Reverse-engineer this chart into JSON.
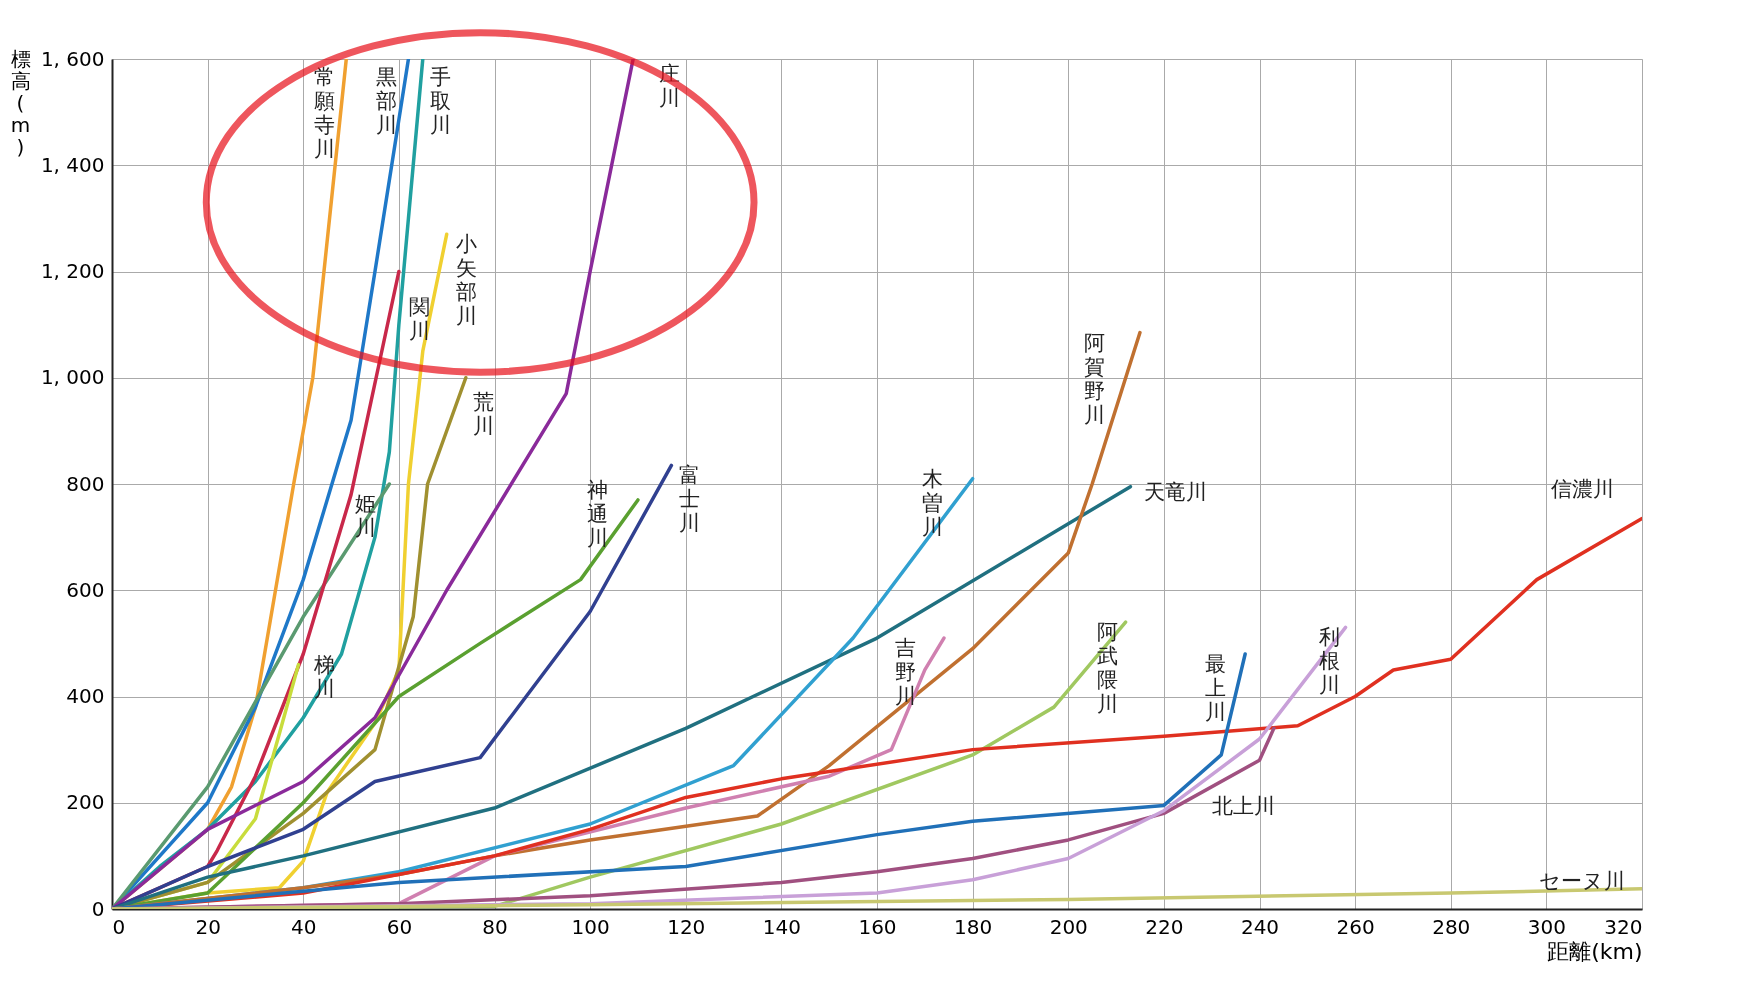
{
  "chart_data": {
    "type": "line",
    "xlabel": "距離(km)",
    "ylabel": "標高(m)",
    "xlim": [
      0,
      320
    ],
    "xticks": [
      0,
      20,
      40,
      60,
      80,
      100,
      120,
      140,
      160,
      180,
      200,
      220,
      240,
      260,
      280,
      300,
      320
    ],
    "ylim": [
      0,
      1600
    ],
    "yticks": [
      0,
      200,
      400,
      600,
      800,
      {
        "value": 1000,
        "label": "1, 000"
      },
      {
        "value": 1200,
        "label": "1, 200"
      },
      {
        "value": 1400,
        "label": "1, 400"
      },
      {
        "value": 1600,
        "label": "1, 600"
      }
    ],
    "grid": true,
    "legend": false,
    "marker": "none",
    "line_style": "solid",
    "series": [
      {
        "name": "常願寺川",
        "color": "#f0a030",
        "x": [
          0,
          20,
          25,
          30,
          38,
          42,
          49
        ],
        "values": [
          0,
          150,
          230,
          380,
          800,
          1000,
          1600
        ]
      },
      {
        "name": "黒部川",
        "color": "#1e78c8",
        "x": [
          0,
          20,
          30,
          40,
          50,
          55,
          62
        ],
        "values": [
          0,
          200,
          380,
          620,
          920,
          1200,
          1600
        ]
      },
      {
        "name": "手取川",
        "color": "#20a0a0",
        "x": [
          0,
          10,
          20,
          30,
          40,
          48,
          55,
          58,
          60,
          62,
          65
        ],
        "values": [
          0,
          80,
          150,
          240,
          360,
          480,
          700,
          860,
          1100,
          1300,
          1600
        ]
      },
      {
        "name": "姫川",
        "color": "#5a9a70",
        "x": [
          0,
          20,
          40,
          58
        ],
        "values": [
          0,
          230,
          550,
          800
        ]
      },
      {
        "name": "関川",
        "color": "#c8284a",
        "x": [
          0,
          20,
          22,
          30,
          40,
          50,
          60
        ],
        "values": [
          0,
          80,
          110,
          250,
          480,
          780,
          1200
        ]
      },
      {
        "name": "梯川",
        "color": "#c8dc3c",
        "x": [
          0,
          20,
          30,
          35,
          39
        ],
        "values": [
          0,
          50,
          170,
          330,
          460
        ]
      },
      {
        "name": "小矢部川",
        "color": "#f0d030",
        "x": [
          0,
          20,
          35,
          40,
          45,
          55,
          60,
          62,
          65,
          70
        ],
        "values": [
          0,
          30,
          40,
          90,
          220,
          350,
          450,
          800,
          1050,
          1270
        ]
      },
      {
        "name": "荒川",
        "color": "#a09030",
        "x": [
          0,
          20,
          40,
          55,
          63,
          66,
          74
        ],
        "values": [
          0,
          50,
          180,
          300,
          550,
          800,
          1000
        ]
      },
      {
        "name": "庄川",
        "color": "#8a2a9a",
        "x": [
          0,
          20,
          40,
          55,
          70,
          95,
          100,
          109
        ],
        "values": [
          0,
          150,
          240,
          360,
          600,
          970,
          1200,
          1600
        ]
      },
      {
        "name": "神通川",
        "color": "#5aa030",
        "x": [
          0,
          20,
          40,
          60,
          77,
          98,
          110
        ],
        "values": [
          0,
          30,
          200,
          400,
          500,
          620,
          770
        ]
      },
      {
        "name": "富士川",
        "color": "#304090",
        "x": [
          0,
          20,
          40,
          55,
          77,
          100,
          117
        ],
        "values": [
          0,
          80,
          150,
          240,
          285,
          560,
          835
        ]
      },
      {
        "name": "天竜川",
        "color": "#207080",
        "x": [
          0,
          20,
          40,
          80,
          120,
          160,
          213
        ],
        "values": [
          0,
          60,
          100,
          190,
          340,
          510,
          795
        ]
      },
      {
        "name": "木曽川",
        "color": "#30a0d0",
        "x": [
          0,
          20,
          40,
          60,
          100,
          130,
          155,
          180
        ],
        "values": [
          0,
          20,
          40,
          70,
          160,
          270,
          510,
          810
        ]
      },
      {
        "name": "阿賀野川",
        "color": "#c07030",
        "x": [
          0,
          40,
          60,
          80,
          100,
          135,
          150,
          165,
          180,
          200,
          205,
          215
        ],
        "values": [
          0,
          40,
          65,
          100,
          130,
          175,
          270,
          380,
          490,
          670,
          800,
          1085
        ]
      },
      {
        "name": "吉野川",
        "color": "#d080b0",
        "x": [
          0,
          60,
          80,
          120,
          150,
          163,
          170,
          174
        ],
        "values": [
          0,
          10,
          100,
          190,
          250,
          300,
          450,
          510
        ]
      },
      {
        "name": "阿武隈川",
        "color": "#a0c860",
        "x": [
          0,
          80,
          100,
          140,
          180,
          197,
          212
        ],
        "values": [
          0,
          5,
          60,
          160,
          290,
          380,
          540
        ]
      },
      {
        "name": "信濃川",
        "color": "#e03020",
        "x": [
          0,
          40,
          80,
          100,
          120,
          140,
          180,
          220,
          248,
          260,
          268,
          280,
          298,
          320
        ],
        "values": [
          0,
          30,
          100,
          150,
          210,
          245,
          300,
          325,
          345,
          400,
          450,
          470,
          620,
          735
        ]
      },
      {
        "name": "最上川",
        "color": "#2070b8",
        "x": [
          0,
          60,
          120,
          160,
          180,
          220,
          232,
          237
        ],
        "values": [
          0,
          50,
          80,
          140,
          165,
          195,
          290,
          480
        ]
      },
      {
        "name": "北上川",
        "color": "#a05080",
        "x": [
          0,
          60,
          100,
          140,
          160,
          180,
          200,
          220,
          240,
          243
        ],
        "values": [
          0,
          10,
          25,
          50,
          70,
          95,
          130,
          180,
          280,
          340
        ]
      },
      {
        "name": "利根川",
        "color": "#c8a0d8",
        "x": [
          0,
          100,
          160,
          180,
          200,
          220,
          240,
          258
        ],
        "values": [
          0,
          10,
          30,
          55,
          95,
          185,
          320,
          530
        ]
      },
      {
        "name": "セーヌ川",
        "color": "#c8c870",
        "x": [
          0,
          100,
          200,
          280,
          320
        ],
        "values": [
          0,
          8,
          18,
          30,
          38
        ]
      }
    ]
  }
}
